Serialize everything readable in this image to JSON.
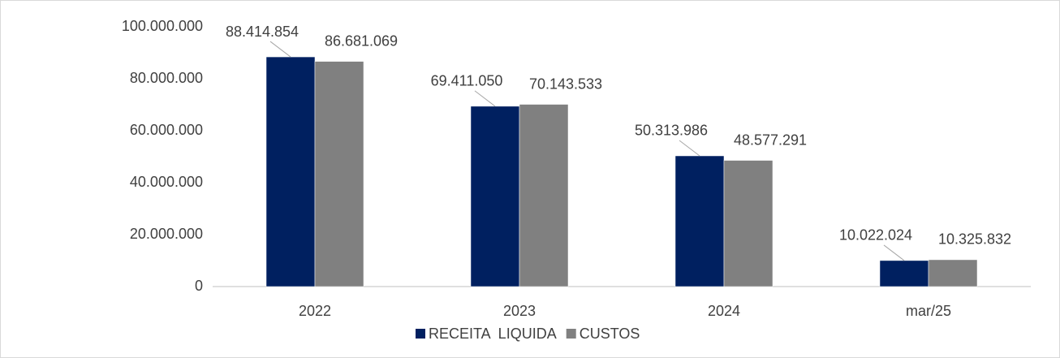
{
  "chart_data": {
    "type": "bar",
    "categories": [
      "2022",
      "2023",
      "2024",
      "mar/25"
    ],
    "series": [
      {
        "name": "RECEITA  LIQUIDA",
        "color": "#002060",
        "values": [
          88414854,
          69411050,
          50313986,
          10022024
        ],
        "value_labels": [
          "88.414.854",
          "69.411.050",
          "50.313.986",
          "10.022.024"
        ]
      },
      {
        "name": "CUSTOS",
        "color": "#808080",
        "values": [
          86681069,
          70143533,
          48577291,
          10325832
        ],
        "value_labels": [
          "86.681.069",
          "70.143.533",
          "48.577.291",
          "10.325.832"
        ]
      }
    ],
    "ylim": [
      0,
      100000000
    ],
    "yticks": [
      0,
      {
        "value": 20000000,
        "label": "20.000.000"
      },
      {
        "value": 40000000,
        "label": "40.000.000"
      },
      {
        "value": 60000000,
        "label": "60.000.000"
      },
      {
        "value": 80000000,
        "label": "80.000.000"
      },
      {
        "value": 100000000,
        "label": "100.000.000"
      }
    ],
    "grid": false,
    "legend": "bottom"
  }
}
